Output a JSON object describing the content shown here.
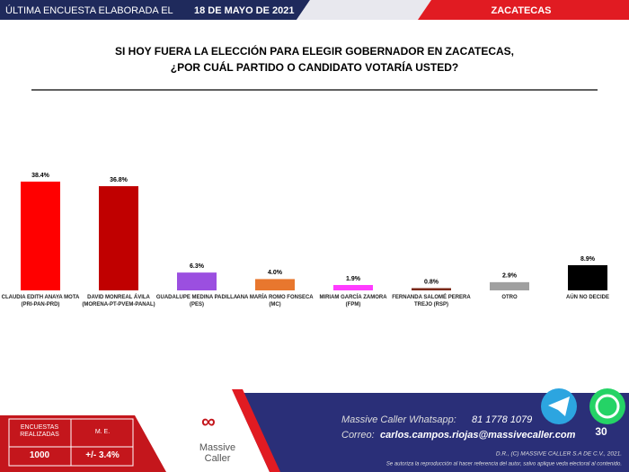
{
  "header": {
    "prefix": "ÚLTIMA ENCUESTA ELABORADA EL",
    "date": "18 DE MAYO DE 2021",
    "region": "ZACATECAS"
  },
  "chart_data": {
    "type": "bar",
    "title": [
      "SI HOY FUERA LA ELECCIÓN PARA ELEGIR GOBERNADOR EN ZACATECAS,",
      "¿POR CUÁL PARTIDO O CANDIDATO VOTARÍA USTED?"
    ],
    "categories": [
      "CLAUDIA EDITH ANAYA MOTA (PRI-PAN-PRD)",
      "DAVID MONREAL ÁVILA (MORENA-PT-PVEM-PANAL)",
      "GUADALUPE MEDINA PADILLA (PES)",
      "ANA MARÍA ROMO FONSECA (MC)",
      "MIRIAM GARCÍA ZAMORA (FPM)",
      "FERNANDA SALOMÉ PERERA TREJO (RSP)",
      "OTRO",
      "AÚN NO DECIDE"
    ],
    "values": [
      38.4,
      36.8,
      6.3,
      4.0,
      1.9,
      0.8,
      2.9,
      8.9
    ],
    "value_labels": [
      "38.4%",
      "36.8%",
      "6.3%",
      "4.0%",
      "1.9%",
      "0.8%",
      "2.9%",
      "8.9%"
    ],
    "colors": [
      "#ff0000",
      "#c00000",
      "#9b4fe0",
      "#e8772e",
      "#ff3cff",
      "#7b2a1a",
      "#a0a0a0",
      "#000000"
    ]
  },
  "footer": {
    "surveys_label": "ENCUESTAS REALIZADAS",
    "surveys": "1000",
    "me_label": "M. E.",
    "me": "+/- 3.4%",
    "logo": [
      "Massive",
      "Caller"
    ],
    "whatsapp_label": "Massive Caller Whatsapp:",
    "whatsapp": "81 1778 1079",
    "email_label": "Correo:",
    "email": "carlos.campos.riojas@massivecaller.com",
    "copyright": "D.R., (C) MASSIVE CALLER S.A DE C.V., 2021.",
    "notice": "Se autoriza la reproducción al hacer referencia del autor, salvo aplique veda electoral al contenido.",
    "page": "30"
  }
}
